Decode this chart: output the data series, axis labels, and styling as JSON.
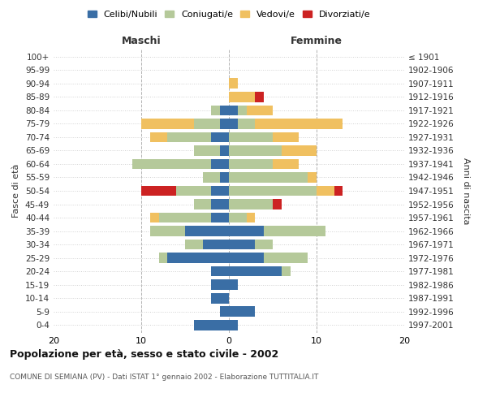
{
  "age_groups": [
    "0-4",
    "5-9",
    "10-14",
    "15-19",
    "20-24",
    "25-29",
    "30-34",
    "35-39",
    "40-44",
    "45-49",
    "50-54",
    "55-59",
    "60-64",
    "65-69",
    "70-74",
    "75-79",
    "80-84",
    "85-89",
    "90-94",
    "95-99",
    "100+"
  ],
  "birth_years": [
    "1997-2001",
    "1992-1996",
    "1987-1991",
    "1982-1986",
    "1977-1981",
    "1972-1976",
    "1967-1971",
    "1962-1966",
    "1957-1961",
    "1952-1956",
    "1947-1951",
    "1942-1946",
    "1937-1941",
    "1932-1936",
    "1927-1931",
    "1922-1926",
    "1917-1921",
    "1912-1916",
    "1907-1911",
    "1902-1906",
    "≤ 1901"
  ],
  "colors": {
    "celibi": "#3a6ea5",
    "coniugati": "#b5c99a",
    "vedovi": "#f0c060",
    "divorziati": "#cc2222"
  },
  "legend_labels": [
    "Celibi/Nubili",
    "Coniugati/e",
    "Vedovi/e",
    "Divorziati/e"
  ],
  "maschi": {
    "celibi": [
      4,
      1,
      2,
      2,
      2,
      7,
      3,
      5,
      2,
      2,
      2,
      1,
      2,
      1,
      2,
      1,
      1,
      0,
      0,
      0,
      0
    ],
    "coniugati": [
      0,
      0,
      0,
      0,
      0,
      1,
      2,
      4,
      6,
      2,
      4,
      2,
      9,
      3,
      5,
      3,
      1,
      0,
      0,
      0,
      0
    ],
    "vedovi": [
      0,
      0,
      0,
      0,
      0,
      0,
      0,
      0,
      1,
      0,
      0,
      0,
      0,
      0,
      2,
      6,
      0,
      0,
      0,
      0,
      0
    ],
    "divorziati": [
      0,
      0,
      0,
      0,
      0,
      0,
      0,
      0,
      0,
      0,
      4,
      0,
      0,
      0,
      0,
      0,
      0,
      0,
      0,
      0,
      0
    ]
  },
  "femmine": {
    "nubili": [
      1,
      3,
      0,
      1,
      6,
      4,
      3,
      4,
      0,
      0,
      0,
      0,
      0,
      0,
      0,
      1,
      1,
      0,
      0,
      0,
      0
    ],
    "coniugate": [
      0,
      0,
      0,
      0,
      1,
      5,
      2,
      7,
      2,
      5,
      10,
      9,
      5,
      6,
      5,
      2,
      1,
      0,
      0,
      0,
      0
    ],
    "vedove": [
      0,
      0,
      0,
      0,
      0,
      0,
      0,
      0,
      1,
      0,
      2,
      1,
      3,
      4,
      3,
      10,
      3,
      3,
      1,
      0,
      0
    ],
    "divorziate": [
      0,
      0,
      0,
      0,
      0,
      0,
      0,
      0,
      0,
      1,
      1,
      0,
      0,
      0,
      0,
      0,
      0,
      1,
      0,
      0,
      0
    ]
  },
  "title": "Popolazione per età, sesso e stato civile - 2002",
  "subtitle": "COMUNE DI SEMIANA (PV) - Dati ISTAT 1° gennaio 2002 - Elaborazione TUTTITALIA.IT",
  "xlabel_left": "Maschi",
  "xlabel_right": "Femmine",
  "ylabel": "Fasce di età",
  "ylabel_right": "Anni di nascita",
  "xlim": 20,
  "background_color": "#ffffff",
  "grid_color": "#cccccc"
}
